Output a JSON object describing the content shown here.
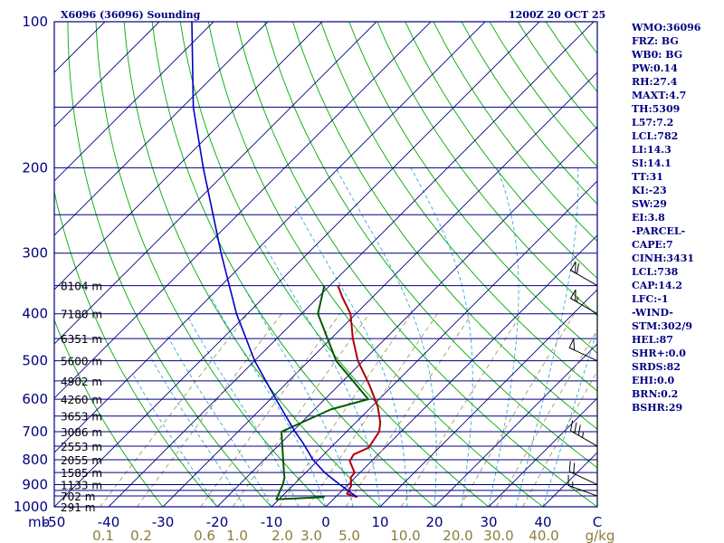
{
  "header": {
    "station": "X6096 (36096) Sounding",
    "time": "1200Z 20 OCT 25"
  },
  "colors": {
    "isobar": "#000080",
    "frame": "#000080",
    "isotherm": "#000080",
    "dry_adiabat": "#00aa00",
    "moist_adiabat": "#20a0d0",
    "mixing_ratio": "#9a8f4a",
    "temperature": "#b00000",
    "dewpoint": "#005a00",
    "parcel": "#0000c8",
    "wind": "#000000",
    "text": "#000080"
  },
  "chart_data": {
    "type": "skew-t",
    "title": "X6096 (36096) Sounding",
    "valid_time": "1200Z 20 OCT 25",
    "pressure_axis": {
      "unit": "mb",
      "range": [
        1000,
        100
      ],
      "tick_labels": [
        "100",
        "200",
        "300",
        "400",
        "500",
        "600",
        "700",
        "800",
        "900",
        "1000"
      ],
      "isobars": [
        100,
        150,
        200,
        250,
        300,
        350,
        400,
        450,
        500,
        550,
        600,
        650,
        700,
        750,
        800,
        850,
        900,
        925,
        950,
        1000
      ]
    },
    "temperature_axis": {
      "unit": "C",
      "range": [
        -50,
        50
      ],
      "tick_labels": [
        "-50",
        "-40",
        "-30",
        "-20",
        "-10",
        "0",
        "10",
        "20",
        "30",
        "40",
        "C"
      ]
    },
    "mixing_ratio_axis": {
      "unit": "g/kg",
      "values": [
        0.1,
        0.2,
        0.6,
        1.0,
        2.0,
        3.0,
        5.0,
        10.0,
        20.0,
        30.0,
        40.0
      ],
      "tick_labels": [
        "0.1",
        "0.2",
        "0.6",
        "1.0",
        "2.0",
        "3.0",
        "5.0",
        "10.0",
        "20.0",
        "30.0",
        "40.0",
        "g/kg"
      ]
    },
    "height_labels": [
      {
        "p": 350,
        "text": "8104 m"
      },
      {
        "p": 400,
        "text": "7180 m"
      },
      {
        "p": 450,
        "text": "6351 m"
      },
      {
        "p": 500,
        "text": "5600 m"
      },
      {
        "p": 550,
        "text": "4902 m"
      },
      {
        "p": 600,
        "text": "4260 m"
      },
      {
        "p": 650,
        "text": "3653 m"
      },
      {
        "p": 700,
        "text": "3086 m"
      },
      {
        "p": 750,
        "text": "2553 m"
      },
      {
        "p": 800,
        "text": "2055 m"
      },
      {
        "p": 850,
        "text": "1585 m"
      },
      {
        "p": 900,
        "text": "1133 m"
      },
      {
        "p": 950,
        "text": "702 m"
      },
      {
        "p": 1000,
        "text": "291 m"
      }
    ],
    "series": [
      {
        "name": "temperature",
        "points": [
          {
            "p": 955,
            "t": 4.0
          },
          {
            "p": 940,
            "t": 1.5
          },
          {
            "p": 905,
            "t": 0.8
          },
          {
            "p": 870,
            "t": -0.8
          },
          {
            "p": 850,
            "t": -1.0
          },
          {
            "p": 805,
            "t": -4.0
          },
          {
            "p": 780,
            "t": -4.5
          },
          {
            "p": 755,
            "t": -3.0
          },
          {
            "p": 700,
            "t": -4.0
          },
          {
            "p": 670,
            "t": -5.5
          },
          {
            "p": 620,
            "t": -9.0
          },
          {
            "p": 560,
            "t": -14.5
          },
          {
            "p": 500,
            "t": -21.0
          },
          {
            "p": 450,
            "t": -26.0
          },
          {
            "p": 400,
            "t": -31.0
          },
          {
            "p": 370,
            "t": -35.5
          },
          {
            "p": 350,
            "t": -38.5
          }
        ]
      },
      {
        "name": "dewpoint",
        "points": [
          {
            "p": 955,
            "t": -2.0
          },
          {
            "p": 965,
            "t": -10.5
          },
          {
            "p": 900,
            "t": -12.0
          },
          {
            "p": 870,
            "t": -13.0
          },
          {
            "p": 850,
            "t": -14.0
          },
          {
            "p": 800,
            "t": -16.5
          },
          {
            "p": 700,
            "t": -22.0
          },
          {
            "p": 630,
            "t": -17.0
          },
          {
            "p": 600,
            "t": -12.0
          },
          {
            "p": 500,
            "t": -25.0
          },
          {
            "p": 400,
            "t": -37.0
          },
          {
            "p": 350,
            "t": -41.0
          }
        ]
      },
      {
        "name": "parcel",
        "points": [
          {
            "p": 955,
            "t": 4.0
          },
          {
            "p": 900,
            "t": -1.5
          },
          {
            "p": 850,
            "t": -6.5
          },
          {
            "p": 800,
            "t": -11.0
          },
          {
            "p": 738,
            "t": -16.0
          },
          {
            "p": 700,
            "t": -19.5
          },
          {
            "p": 600,
            "t": -29.0
          },
          {
            "p": 500,
            "t": -40.0
          },
          {
            "p": 400,
            "t": -52.0
          },
          {
            "p": 300,
            "t": -66.0
          },
          {
            "p": 200,
            "t": -85.0
          },
          {
            "p": 150,
            "t": -98.0
          },
          {
            "p": 100,
            "t": -114.0
          }
        ]
      }
    ],
    "wind_barbs": [
      {
        "p": 950,
        "dir": 290,
        "speed": 15
      },
      {
        "p": 900,
        "dir": 295,
        "speed": 20
      },
      {
        "p": 750,
        "dir": 300,
        "speed": 35
      },
      {
        "p": 500,
        "dir": 295,
        "speed": 50
      },
      {
        "p": 400,
        "dir": 300,
        "speed": 55
      },
      {
        "p": 350,
        "dir": 300,
        "speed": 60
      }
    ]
  },
  "parameters": [
    "WMO:36096",
    "FRZ: BG",
    "WB0: BG",
    "PW:0.14",
    "RH:27.4",
    "MAXT:4.7",
    "TH:5309",
    "L57:7.2",
    "LCL:782",
    "LI:14.3",
    "SI:14.1",
    "TT:31",
    "KI:-23",
    "SW:29",
    "EI:3.8",
    "-PARCEL-",
    "CAPE:7",
    "CINH:3431",
    "LCL:738",
    "CAP:14.2",
    "LFC:-1",
    "-WIND-",
    "STM:302/9",
    "HEL:87",
    "SHR+:0.0",
    "SRDS:82",
    "EHI:0.0",
    "BRN:0.2",
    "BSHR:29"
  ]
}
